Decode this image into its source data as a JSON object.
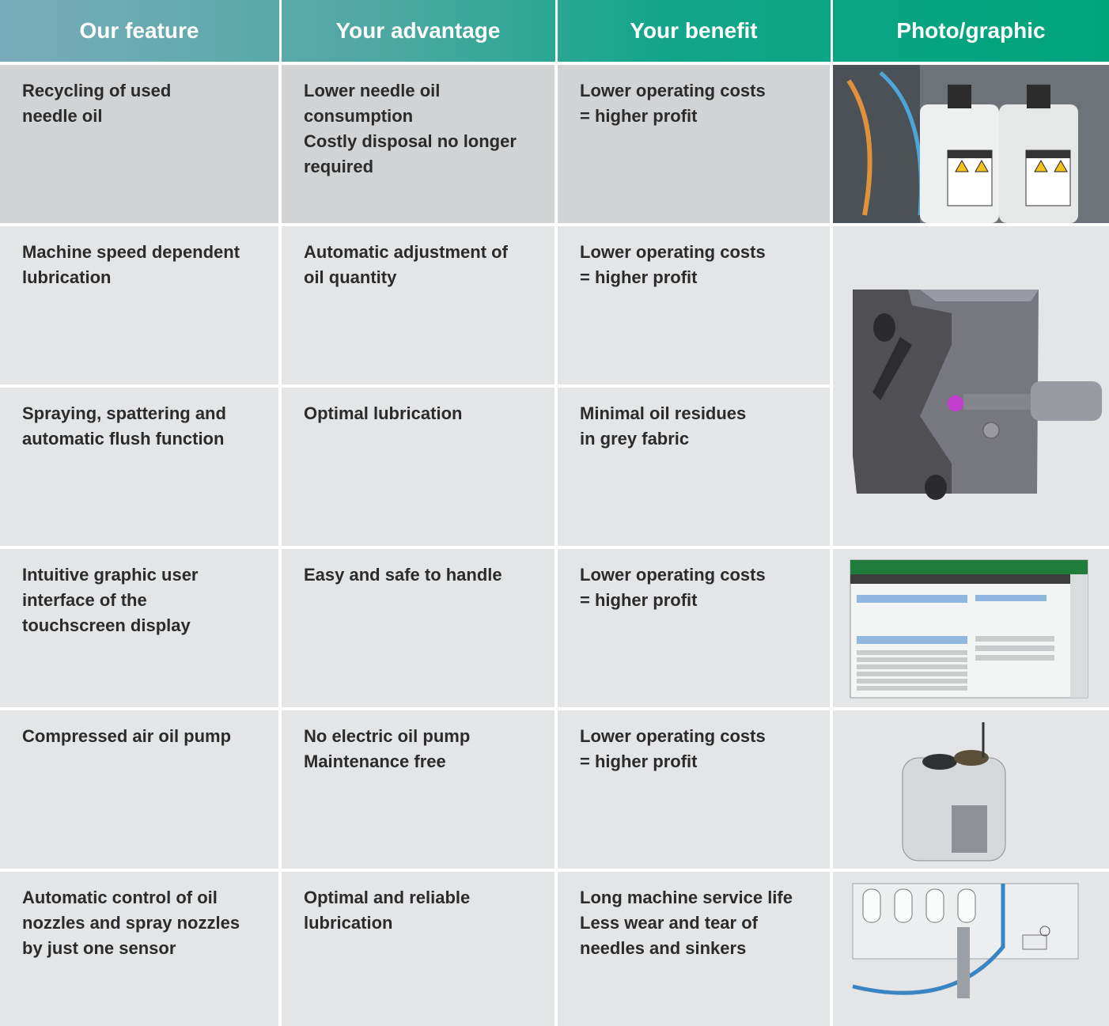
{
  "table": {
    "header": [
      "Our feature",
      "Your advantage",
      "Your benefit",
      "Photo/graphic"
    ],
    "rows": [
      [
        [
          "Recycling of used",
          "needle oil"
        ],
        [
          "Lower needle oil",
          "consumption",
          "Costly disposal no longer",
          "required"
        ],
        [
          "Lower operating costs",
          "= higher profit"
        ]
      ],
      [
        [
          "Machine speed dependent",
          "lubrication"
        ],
        [
          "Automatic adjustment of",
          "oil quantity"
        ],
        [
          "Lower operating costs",
          "= higher profit"
        ]
      ],
      [
        [
          "Spraying, spattering and",
          "automatic flush function"
        ],
        [
          "Optimal lubrication"
        ],
        [
          "Minimal oil residues",
          "in grey fabric"
        ]
      ],
      [
        [
          "Intuitive graphic user",
          "interface of the",
          "touchscreen display"
        ],
        [
          "Easy and safe to handle"
        ],
        [
          "Lower operating costs",
          "= higher profit"
        ]
      ],
      [
        [
          "Compressed air oil pump"
        ],
        [
          "No electric oil pump",
          "Maintenance free"
        ],
        [
          "Lower operating costs",
          "= higher profit"
        ]
      ],
      [
        [
          "Automatic control of oil",
          "nozzles and spray nozzles",
          "by just one sensor"
        ],
        [
          "Optimal and reliable",
          "lubrication"
        ],
        [
          "Long machine service life",
          "Less wear and tear of",
          "needles and sinkers"
        ]
      ]
    ]
  }
}
